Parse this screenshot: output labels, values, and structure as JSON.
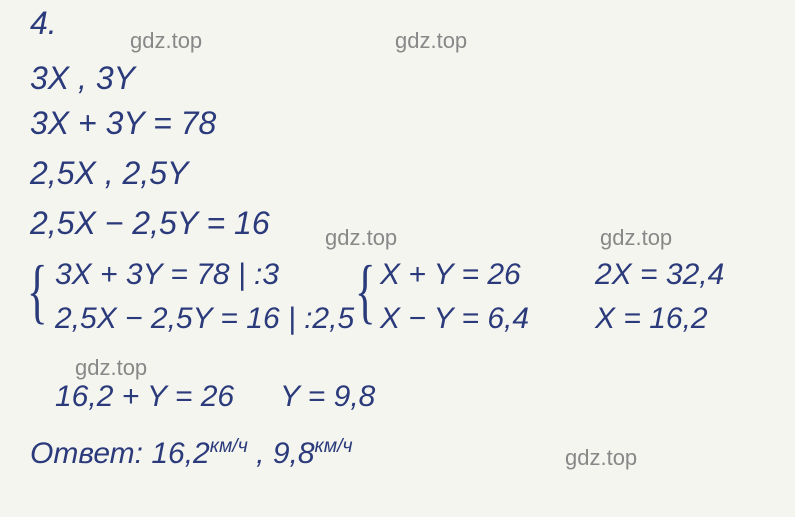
{
  "problem_number": "4.",
  "ink_color": "#2a3a7a",
  "background_color": "#f5f5f0",
  "watermark_color": "#888888",
  "font_size_main": 32,
  "font_size_equations": 30,
  "font_size_watermark": 22,
  "lines": {
    "variables_1": "3X ,  3Y",
    "eq_1": "3X + 3Y = 78",
    "variables_2": "2,5X ,  2,5Y",
    "eq_2": "2,5X − 2,5Y = 16",
    "system_1a": "3X + 3Y = 78 | :3",
    "system_1b": "2,5X − 2,5Y = 16 | :2,5",
    "system_2a": "X + Y = 26",
    "system_2b": "X − Y = 6,4",
    "solve_a": "2X = 32,4",
    "solve_b": "X = 16,2",
    "subst": "16,2 + Y = 26",
    "subst_result": "Y = 9,8",
    "answer_prefix": "Ответ: 16,2",
    "answer_unit": "км/ч",
    "answer_sep": " ,  9,8"
  },
  "watermark_text": "gdz.top",
  "braces": {
    "symbol": "{"
  }
}
